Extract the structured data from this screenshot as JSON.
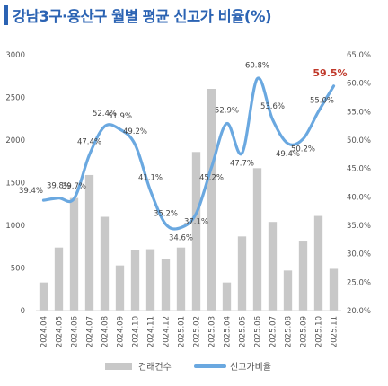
{
  "chart_data": {
    "type": "bar",
    "title": "강남3구·용산구 월별 평균 신고가 비율(%)",
    "categories": [
      "2024.04",
      "2024.05",
      "2024.06",
      "2024.07",
      "2024.08",
      "2024.09",
      "2024.10",
      "2024.11",
      "2024.12",
      "2025.01",
      "2025.02",
      "2025.03",
      "2025.04",
      "2025.05",
      "2025.06",
      "2025.07",
      "2025.08",
      "2025.09",
      "2025.10",
      "2025.11"
    ],
    "series": [
      {
        "name": "건래건수",
        "type": "bar",
        "axis": "left",
        "color": "#c8c8c8",
        "values": [
          330,
          740,
          1320,
          1590,
          1100,
          530,
          710,
          720,
          600,
          740,
          1860,
          2600,
          330,
          870,
          1670,
          1040,
          470,
          810,
          1110,
          490
        ]
      },
      {
        "name": "신고가비율",
        "type": "line",
        "axis": "right",
        "color": "#6aa8e0",
        "values": [
          39.4,
          39.8,
          39.7,
          47.4,
          52.4,
          51.9,
          49.2,
          41.1,
          35.2,
          34.6,
          37.1,
          45.2,
          52.9,
          47.7,
          60.8,
          53.6,
          49.4,
          50.2,
          55.0,
          59.5
        ]
      }
    ],
    "line_labels": [
      "39.4%",
      "39.8%",
      "39.7%",
      "47.4%",
      "52.4%",
      "51.9%",
      "49.2%",
      "41.1%",
      "35.2%",
      "34.6%",
      "37.1%",
      "45.2%",
      "52.9%",
      "47.7%",
      "60.8%",
      "53.6%",
      "49.4%",
      "50.2%",
      "55.0%",
      "59.5%"
    ],
    "left_axis": {
      "min": 0,
      "max": 3000,
      "ticks": [
        "0",
        "500",
        "1000",
        "1500",
        "2000",
        "2500",
        "3000"
      ]
    },
    "right_axis": {
      "min": 20,
      "max": 65,
      "ticks": [
        "20.0%",
        "25.0%",
        "30.0%",
        "35.0%",
        "40.0%",
        "45.0%",
        "50.0%",
        "55.0%",
        "60.0%",
        "65.0%"
      ]
    },
    "highlight_index": 19,
    "highlight_color": "#c0392b",
    "legend": {
      "position": "bottom",
      "bar_label": "건래건수",
      "line_label": "신고가비율"
    },
    "grid": false
  }
}
